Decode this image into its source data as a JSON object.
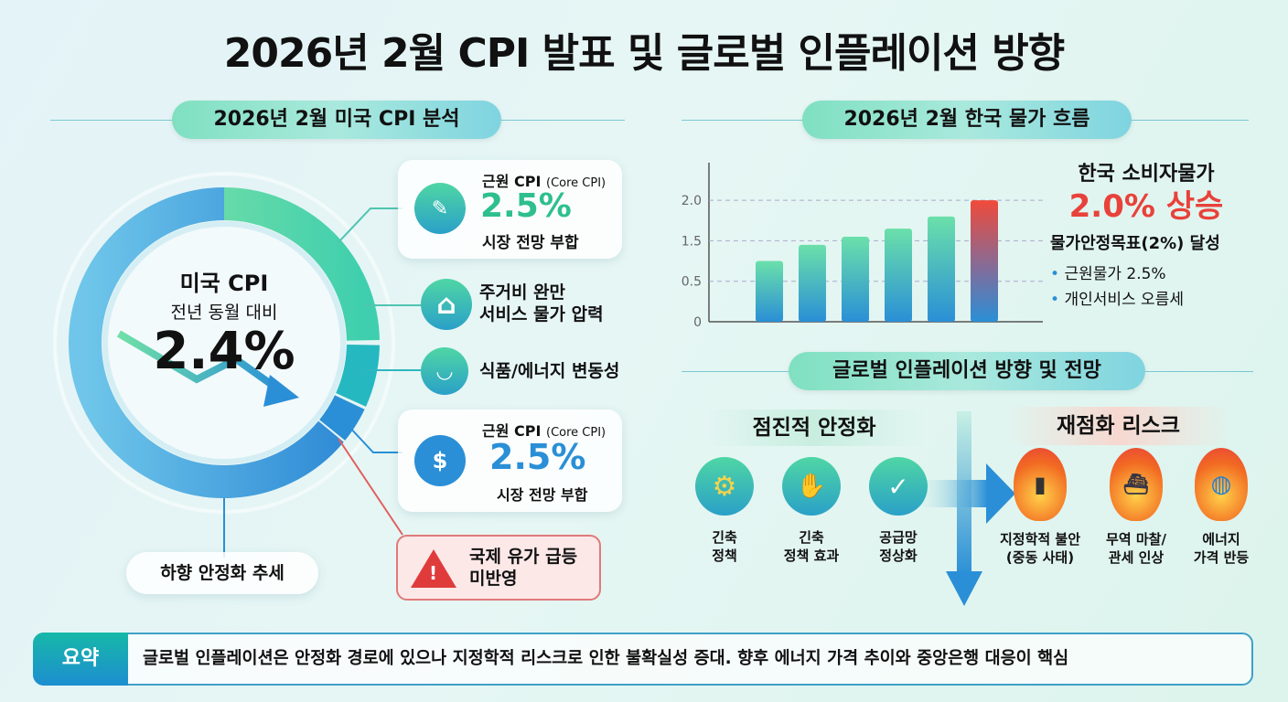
{
  "title": "2026년 2월 CPI 발표 및 글로벌 인플레이션 방향",
  "us": {
    "header": "2026년 2월 미국 CPI 분석",
    "donut": {
      "label1": "미국 CPI",
      "label2": "전년 동월 대비",
      "value": "2.4%"
    },
    "trend_label": "하향 안정화 추세",
    "core1": {
      "title": "근원 CPI",
      "sub": "(Core CPI)",
      "value": "2.5%",
      "note": "시장 전망 부합",
      "color": "#2fbf8f",
      "icon": "pills-icon"
    },
    "housing": {
      "line1": "주거비 완만",
      "line2": "서비스 물가 압력",
      "icon": "house-icon"
    },
    "food": {
      "label": "식품/에너지 변동성",
      "icon": "food-bowl-icon"
    },
    "core2": {
      "title": "근원 CPI",
      "sub": "(Core CPI)",
      "value": "2.5%",
      "note": "시장 전망 부합",
      "color": "#2a8fd6",
      "icon": "money-bag-hand-icon"
    },
    "warning": {
      "line1": "국제 유가 급등",
      "line2": "미반영",
      "icon": "warning-icon",
      "color": "#e03b3b"
    }
  },
  "korea": {
    "header": "2026년 2월 한국 물가 흐름",
    "headline": "한국 소비자물가",
    "value": "2.0% 상승",
    "target": "물가안정목표(2%) 달성",
    "bullets": [
      "근원물가 2.5%",
      "개인서비스 오름세"
    ],
    "accent": "#e8423a"
  },
  "chart_data": {
    "type": "bar",
    "title": "",
    "xlabel": "",
    "ylabel": "",
    "yticks": [
      "0",
      "0.5",
      "1.5",
      "2.0"
    ],
    "ytick_values": [
      0,
      0.5,
      1.5,
      2.0
    ],
    "values": [
      1.0,
      1.4,
      1.55,
      1.65,
      1.8,
      2.0
    ],
    "highlight_last": true,
    "grid": true,
    "colors": {
      "bar": "#4fd6a4",
      "bar_bottom": "#2a8fd6",
      "highlight": "#f04a3a"
    }
  },
  "global": {
    "header": "글로벌 인플레이션 방향 및 전망",
    "stable": {
      "title": "점진적 안정화",
      "items": [
        {
          "line1": "긴축",
          "line2": "정책",
          "icon": "gears-icon"
        },
        {
          "line1": "긴축",
          "line2": "정책 효과",
          "icon": "handshake-icon"
        },
        {
          "line1": "공급망",
          "line2": "정상화",
          "icon": "shield-check-icon"
        }
      ]
    },
    "risk": {
      "title": "재점화 리스크",
      "items": [
        {
          "line1": "지정학적 불안",
          "line2": "(중동 사태)",
          "icon": "oil-barrel-fire-icon"
        },
        {
          "line1": "무역 마찰/",
          "line2": "관세 인상",
          "icon": "cargo-ship-fire-icon"
        },
        {
          "line1": "에너지",
          "line2": "가격 반등",
          "icon": "globe-fire-icon"
        }
      ]
    }
  },
  "summary": {
    "label": "요약",
    "text": "글로벌 인플레이션은 안정화 경로에 있으나 지정학적 리스크로 인한 불확실성 증대. 향후 에너지 가격 추이와 중앙은행 대응이 핵심"
  }
}
